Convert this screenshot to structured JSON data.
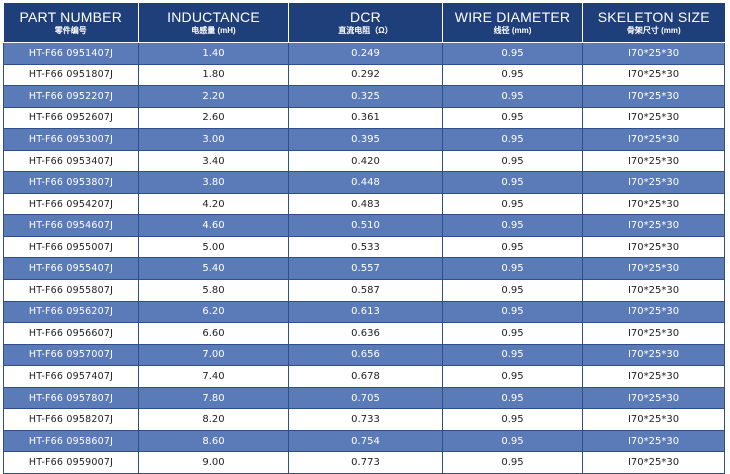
{
  "headers": [
    {
      "en": "PART NUMBER",
      "cn": "零件编号"
    },
    {
      "en": "INDUCTANCE",
      "cn": "电感量 (mH)"
    },
    {
      "en": "DCR",
      "cn": "直流电阻（Ω）"
    },
    {
      "en": "WIRE DIAMETER",
      "cn": "线径 (mm)"
    },
    {
      "en": "SKELETON SIZE",
      "cn": "骨架尺寸 (mm)"
    }
  ],
  "rows": [
    {
      "part": "HT-F66 0951407J",
      "inductance": "1.40",
      "dcr": "0.249",
      "wire": "0.95",
      "size": "I70*25*30"
    },
    {
      "part": "HT-F66 0951807J",
      "inductance": "1.80",
      "dcr": "0.292",
      "wire": "0.95",
      "size": "I70*25*30"
    },
    {
      "part": "HT-F66 0952207J",
      "inductance": "2.20",
      "dcr": "0.325",
      "wire": "0.95",
      "size": "I70*25*30"
    },
    {
      "part": "HT-F66 0952607J",
      "inductance": "2.60",
      "dcr": "0.361",
      "wire": "0.95",
      "size": "I70*25*30"
    },
    {
      "part": "HT-F66 0953007J",
      "inductance": "3.00",
      "dcr": "0.395",
      "wire": "0.95",
      "size": "I70*25*30"
    },
    {
      "part": "HT-F66 0953407J",
      "inductance": "3.40",
      "dcr": "0.420",
      "wire": "0.95",
      "size": "I70*25*30"
    },
    {
      "part": "HT-F66 0953807J",
      "inductance": "3.80",
      "dcr": "0.448",
      "wire": "0.95",
      "size": "I70*25*30"
    },
    {
      "part": "HT-F66 0954207J",
      "inductance": "4.20",
      "dcr": "0.483",
      "wire": "0.95",
      "size": "I70*25*30"
    },
    {
      "part": "HT-F66 0954607J",
      "inductance": "4.60",
      "dcr": "0.510",
      "wire": "0.95",
      "size": "I70*25*30"
    },
    {
      "part": "HT-F66 0955007J",
      "inductance": "5.00",
      "dcr": "0.533",
      "wire": "0.95",
      "size": "I70*25*30"
    },
    {
      "part": "HT-F66 0955407J",
      "inductance": "5.40",
      "dcr": "0.557",
      "wire": "0.95",
      "size": "I70*25*30"
    },
    {
      "part": "HT-F66 0955807J",
      "inductance": "5.80",
      "dcr": "0.587",
      "wire": "0.95",
      "size": "I70*25*30"
    },
    {
      "part": "HT-F66 0956207J",
      "inductance": "6.20",
      "dcr": "0.613",
      "wire": "0.95",
      "size": "I70*25*30"
    },
    {
      "part": "HT-F66 0956607J",
      "inductance": "6.60",
      "dcr": "0.636",
      "wire": "0.95",
      "size": "I70*25*30"
    },
    {
      "part": "HT-F66 0957007J",
      "inductance": "7.00",
      "dcr": "0.656",
      "wire": "0.95",
      "size": "I70*25*30"
    },
    {
      "part": "HT-F66 0957407J",
      "inductance": "7.40",
      "dcr": "0.678",
      "wire": "0.95",
      "size": "I70*25*30"
    },
    {
      "part": "HT-F66 0957807J",
      "inductance": "7.80",
      "dcr": "0.705",
      "wire": "0.95",
      "size": "I70*25*30"
    },
    {
      "part": "HT-F66 0958207J",
      "inductance": "8.20",
      "dcr": "0.733",
      "wire": "0.95",
      "size": "I70*25*30"
    },
    {
      "part": "HT-F66 0958607J",
      "inductance": "8.60",
      "dcr": "0.754",
      "wire": "0.95",
      "size": "I70*25*30"
    },
    {
      "part": "HT-F66 0959007J",
      "inductance": "9.00",
      "dcr": "0.773",
      "wire": "0.95",
      "size": "I70*25*30"
    }
  ],
  "colors": {
    "header_bg": "#1f3f7a",
    "stripe_bg": "#5b7bb8",
    "row_bg": "#ffffff"
  }
}
